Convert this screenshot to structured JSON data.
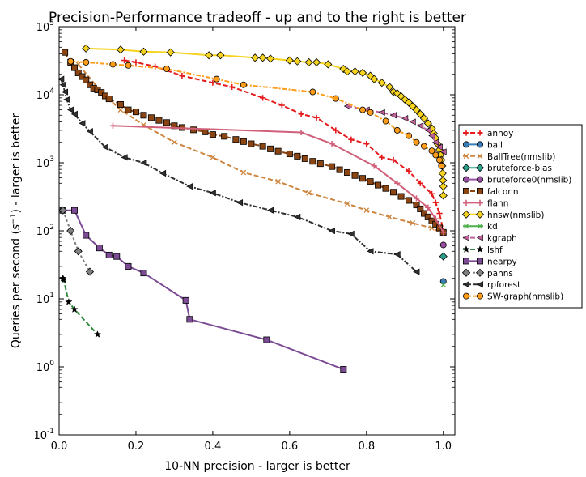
{
  "chart_data": {
    "type": "line",
    "title": "Precision-Performance tradeoff - up and to the right is better",
    "xlabel": "10-NN precision - larger is better",
    "ylabel_prefix": "Queries per second (",
    "ylabel_unit": "s",
    "ylabel_exp": "−1",
    "ylabel_suffix": ") - larger is better",
    "xscale": "linear",
    "yscale": "log",
    "xlim": [
      0.0,
      1.03
    ],
    "ylim": [
      0.1,
      100000
    ],
    "x_ticks": [
      0.0,
      0.2,
      0.4,
      0.6,
      0.8,
      1.0
    ],
    "x_tick_labels": [
      "0.0",
      "0.2",
      "0.4",
      "0.6",
      "0.8",
      "1.0"
    ],
    "y_ticks": [
      0.1,
      1,
      10,
      100,
      1000,
      10000,
      100000
    ],
    "y_tick_labels": [
      {
        "base": "10",
        "exp": "-1"
      },
      {
        "base": "10",
        "exp": "0"
      },
      {
        "base": "10",
        "exp": "1"
      },
      {
        "base": "10",
        "exp": "2"
      },
      {
        "base": "10",
        "exp": "3"
      },
      {
        "base": "10",
        "exp": "4"
      },
      {
        "base": "10",
        "exp": "5"
      }
    ],
    "legend_position": "right-outside",
    "series": [
      {
        "name": "annoy",
        "color": "#e41a1c",
        "marker": "plus",
        "dash": "6,3",
        "points": [
          [
            0.17,
            32000
          ],
          [
            0.2,
            30000
          ],
          [
            0.25,
            26000
          ],
          [
            0.32,
            19000
          ],
          [
            0.4,
            15000
          ],
          [
            0.45,
            13000
          ],
          [
            0.53,
            9000
          ],
          [
            0.58,
            7000
          ],
          [
            0.63,
            5200
          ],
          [
            0.67,
            4600
          ],
          [
            0.72,
            3000
          ],
          [
            0.76,
            2200
          ],
          [
            0.8,
            1900
          ],
          [
            0.84,
            1200
          ],
          [
            0.87,
            1100
          ],
          [
            0.91,
            750
          ],
          [
            0.94,
            500
          ],
          [
            0.97,
            350
          ],
          [
            0.98,
            260
          ],
          [
            0.99,
            180
          ],
          [
            1.0,
            100
          ]
        ]
      },
      {
        "name": "ball",
        "color": "#377eb8",
        "marker": "circle",
        "dash": "",
        "points": [
          [
            1.0,
            18
          ]
        ]
      },
      {
        "name": "BallTree(nmslib)",
        "color": "#cd853f",
        "marker": "x",
        "dash": "6,3",
        "points": [
          [
            0.05,
            28000
          ],
          [
            0.11,
            11000
          ],
          [
            0.16,
            6000
          ],
          [
            0.22,
            3600
          ],
          [
            0.3,
            2000
          ],
          [
            0.4,
            1200
          ],
          [
            0.48,
            720
          ],
          [
            0.57,
            530
          ],
          [
            0.65,
            360
          ],
          [
            0.75,
            250
          ],
          [
            0.8,
            200
          ],
          [
            0.86,
            160
          ],
          [
            0.92,
            130
          ],
          [
            0.97,
            110
          ],
          [
            1.0,
            90
          ]
        ]
      },
      {
        "name": "bruteforce-blas",
        "color": "#2ca089",
        "marker": "diamond",
        "dash": "",
        "points": [
          [
            1.0,
            42
          ]
        ]
      },
      {
        "name": "bruteforce0(nmslib)",
        "color": "#984ea3",
        "marker": "circle",
        "dash": "",
        "points": [
          [
            1.0,
            62
          ]
        ]
      },
      {
        "name": "falconn",
        "color": "#8b4513",
        "marker": "square",
        "dash": "6,3",
        "points": [
          [
            0.015,
            42000
          ],
          [
            0.03,
            30000
          ],
          [
            0.04,
            25000
          ],
          [
            0.05,
            21000
          ],
          [
            0.06,
            18500
          ],
          [
            0.07,
            16500
          ],
          [
            0.08,
            14000
          ],
          [
            0.09,
            12500
          ],
          [
            0.1,
            11800
          ],
          [
            0.11,
            10800
          ],
          [
            0.12,
            9600
          ],
          [
            0.13,
            8700
          ],
          [
            0.16,
            7200
          ],
          [
            0.18,
            6000
          ],
          [
            0.2,
            5600
          ],
          [
            0.22,
            5000
          ],
          [
            0.24,
            4600
          ],
          [
            0.26,
            4200
          ],
          [
            0.28,
            3900
          ],
          [
            0.3,
            3500
          ],
          [
            0.32,
            3300
          ],
          [
            0.35,
            3050
          ],
          [
            0.38,
            2850
          ],
          [
            0.4,
            2600
          ],
          [
            0.43,
            2450
          ],
          [
            0.46,
            2200
          ],
          [
            0.48,
            2050
          ],
          [
            0.5,
            1900
          ],
          [
            0.53,
            1750
          ],
          [
            0.55,
            1600
          ],
          [
            0.57,
            1480
          ],
          [
            0.6,
            1350
          ],
          [
            0.62,
            1250
          ],
          [
            0.64,
            1150
          ],
          [
            0.66,
            1050
          ],
          [
            0.68,
            970
          ],
          [
            0.71,
            880
          ],
          [
            0.73,
            790
          ],
          [
            0.75,
            720
          ],
          [
            0.77,
            650
          ],
          [
            0.79,
            590
          ],
          [
            0.81,
            530
          ],
          [
            0.83,
            470
          ],
          [
            0.85,
            420
          ],
          [
            0.87,
            370
          ],
          [
            0.89,
            320
          ],
          [
            0.91,
            280
          ],
          [
            0.93,
            240
          ],
          [
            0.94,
            210
          ],
          [
            0.95,
            180
          ],
          [
            0.96,
            160
          ],
          [
            0.97,
            140
          ],
          [
            0.98,
            125
          ],
          [
            0.99,
            110
          ],
          [
            1.0,
            95
          ]
        ]
      },
      {
        "name": "flann",
        "color": "#d0607a",
        "marker": "plus",
        "dash": "",
        "points": [
          [
            0.14,
            3500
          ],
          [
            0.63,
            2800
          ],
          [
            0.71,
            1900
          ],
          [
            0.82,
            900
          ],
          [
            0.88,
            500
          ],
          [
            0.93,
            300
          ],
          [
            0.96,
            220
          ],
          [
            0.98,
            150
          ],
          [
            1.0,
            95
          ]
        ]
      },
      {
        "name": "hnsw(nmslib)",
        "color": "#f5d31e",
        "marker": "diamond",
        "dash": "",
        "points": [
          [
            0.07,
            48000
          ],
          [
            0.16,
            46000
          ],
          [
            0.22,
            43000
          ],
          [
            0.29,
            42000
          ],
          [
            0.39,
            38000
          ],
          [
            0.42,
            38000
          ],
          [
            0.51,
            35000
          ],
          [
            0.53,
            35000
          ],
          [
            0.55,
            34000
          ],
          [
            0.6,
            32000
          ],
          [
            0.62,
            31000
          ],
          [
            0.65,
            30000
          ],
          [
            0.67,
            30000
          ],
          [
            0.7,
            28000
          ],
          [
            0.74,
            24000
          ],
          [
            0.75,
            22000
          ],
          [
            0.77,
            22000
          ],
          [
            0.79,
            21000
          ],
          [
            0.81,
            19000
          ],
          [
            0.82,
            17000
          ],
          [
            0.84,
            15000
          ],
          [
            0.86,
            13000
          ],
          [
            0.87,
            11000
          ],
          [
            0.88,
            10500
          ],
          [
            0.89,
            9500
          ],
          [
            0.9,
            8500
          ],
          [
            0.91,
            7700
          ],
          [
            0.92,
            6800
          ],
          [
            0.93,
            6000
          ],
          [
            0.94,
            5200
          ],
          [
            0.95,
            4500
          ],
          [
            0.96,
            3800
          ],
          [
            0.97,
            3200
          ],
          [
            0.975,
            2700
          ],
          [
            0.98,
            2300
          ],
          [
            0.985,
            1900
          ],
          [
            0.99,
            1550
          ],
          [
            0.993,
            1300
          ],
          [
            0.995,
            1100
          ],
          [
            0.997,
            900
          ],
          [
            0.998,
            700
          ],
          [
            0.999,
            550
          ],
          [
            1.0,
            450
          ],
          [
            1.0,
            330
          ]
        ]
      },
      {
        "name": "kd",
        "color": "#4daf4a",
        "marker": "x",
        "dash": "",
        "points": [
          [
            1.0,
            16
          ]
        ]
      },
      {
        "name": "kgraph",
        "color": "#c0609a",
        "marker": "triangle-left",
        "dash": "6,3",
        "points": [
          [
            0.75,
            6800
          ],
          [
            0.8,
            6000
          ],
          [
            0.84,
            5500
          ],
          [
            0.87,
            5000
          ],
          [
            0.9,
            4500
          ],
          [
            0.92,
            4000
          ],
          [
            0.94,
            3500
          ],
          [
            0.96,
            3000
          ],
          [
            0.97,
            2500
          ],
          [
            0.98,
            2000
          ],
          [
            0.99,
            1700
          ],
          [
            1.0,
            1450
          ]
        ]
      },
      {
        "name": "lshf",
        "color": "#2e8b3d",
        "marker": "star",
        "dash": "6,3",
        "points": [
          [
            0.01,
            20
          ],
          [
            0.012,
            19
          ],
          [
            0.025,
            9
          ],
          [
            0.04,
            7
          ],
          [
            0.1,
            3
          ]
        ]
      },
      {
        "name": "nearpy",
        "color": "#7b4b94",
        "marker": "square",
        "dash": "",
        "points": [
          [
            0.01,
            200
          ],
          [
            0.04,
            200
          ],
          [
            0.07,
            86
          ],
          [
            0.105,
            56
          ],
          [
            0.13,
            44
          ],
          [
            0.15,
            42
          ],
          [
            0.18,
            30
          ],
          [
            0.22,
            24
          ],
          [
            0.33,
            9.5
          ],
          [
            0.34,
            5
          ],
          [
            0.54,
            2.5
          ],
          [
            0.74,
            0.92
          ]
        ]
      },
      {
        "name": "panns",
        "color": "#808080",
        "marker": "diamond",
        "dash": "3,3",
        "points": [
          [
            0.01,
            200
          ],
          [
            0.03,
            100
          ],
          [
            0.05,
            50
          ],
          [
            0.08,
            25
          ]
        ]
      },
      {
        "name": "rpforest",
        "color": "#303030",
        "marker": "triangle-left",
        "dash": "6,2,2,2",
        "points": [
          [
            0.005,
            17000
          ],
          [
            0.01,
            14000
          ],
          [
            0.015,
            11000
          ],
          [
            0.02,
            8500
          ],
          [
            0.03,
            6000
          ],
          [
            0.04,
            5200
          ],
          [
            0.06,
            3800
          ],
          [
            0.08,
            2900
          ],
          [
            0.12,
            1700
          ],
          [
            0.17,
            1200
          ],
          [
            0.22,
            1000
          ],
          [
            0.27,
            700
          ],
          [
            0.34,
            450
          ],
          [
            0.4,
            360
          ],
          [
            0.47,
            260
          ],
          [
            0.55,
            200
          ],
          [
            0.62,
            160
          ],
          [
            0.71,
            100
          ],
          [
            0.76,
            90
          ],
          [
            0.81,
            50
          ],
          [
            0.88,
            45
          ],
          [
            0.93,
            25
          ]
        ]
      },
      {
        "name": "SW-graph(nmslib)",
        "color": "#ff9c1a",
        "marker": "circle",
        "dash": "6,2,2,2",
        "points": [
          [
            0.03,
            31000
          ],
          [
            0.07,
            30000
          ],
          [
            0.14,
            28000
          ],
          [
            0.18,
            27000
          ],
          [
            0.28,
            24000
          ],
          [
            0.41,
            17000
          ],
          [
            0.48,
            14000
          ],
          [
            0.66,
            11000
          ],
          [
            0.72,
            8800
          ],
          [
            0.79,
            6000
          ],
          [
            0.81,
            5500
          ],
          [
            0.85,
            4100
          ],
          [
            0.88,
            3000
          ],
          [
            0.91,
            2500
          ],
          [
            0.93,
            2000
          ],
          [
            0.95,
            1750
          ],
          [
            0.97,
            1500
          ],
          [
            0.98,
            1300
          ],
          [
            0.99,
            1100
          ],
          [
            0.995,
            900
          ]
        ]
      }
    ]
  }
}
